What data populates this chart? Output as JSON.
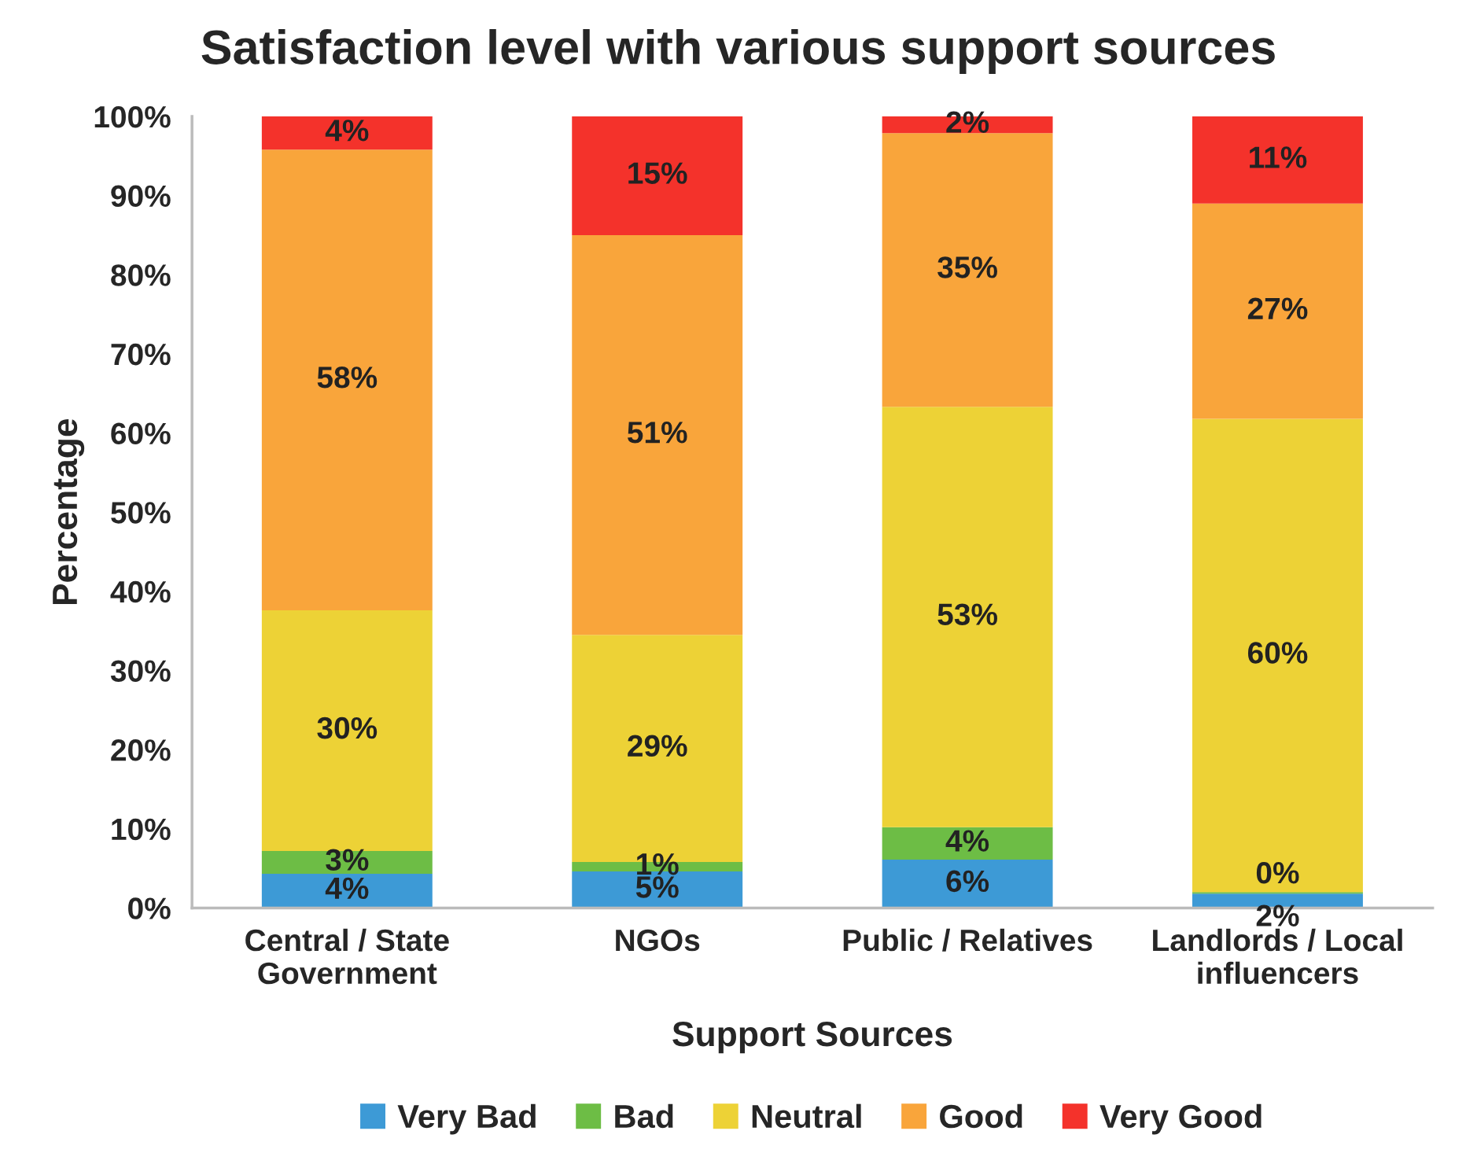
{
  "chart_data": {
    "type": "bar",
    "title": "Satisfaction level with various support sources",
    "xlabel": "Support Sources",
    "ylabel": "Percentage",
    "stacked": true,
    "categories": [
      "Central / State\nGovernment",
      "NGOs",
      "Public / Relatives",
      "Landlords / Local\ninfluencers"
    ],
    "series": [
      {
        "name": "Very Bad",
        "color": "#3d9ad6",
        "values": [
          4.3,
          4.6,
          6.1,
          1.8
        ],
        "value_labels": [
          "4%",
          "5%",
          "6%",
          "2%"
        ]
      },
      {
        "name": "Bad",
        "color": "#6dbd45",
        "values": [
          2.9,
          1.2,
          4.1,
          0.2
        ],
        "value_labels": [
          "3%",
          "1%",
          "4%",
          "0%"
        ]
      },
      {
        "name": "Neutral",
        "color": "#edd236",
        "values": [
          30.4,
          28.7,
          53.1,
          59.8
        ],
        "value_labels": [
          "30%",
          "29%",
          "53%",
          "60%"
        ]
      },
      {
        "name": "Good",
        "color": "#f9a53b",
        "values": [
          58.2,
          50.5,
          34.6,
          27.2
        ],
        "value_labels": [
          "58%",
          "51%",
          "35%",
          "27%"
        ]
      },
      {
        "name": "Very Good",
        "color": "#f4322b",
        "values": [
          4.2,
          15.0,
          2.1,
          11.0
        ],
        "value_labels": [
          "4%",
          "15%",
          "2%",
          "11%"
        ]
      }
    ],
    "ylim": [
      0,
      100
    ],
    "yticks": [
      {
        "value": 0,
        "label": "0%"
      },
      {
        "value": 10,
        "label": "10%"
      },
      {
        "value": 20,
        "label": "20%"
      },
      {
        "value": 30,
        "label": "30%"
      },
      {
        "value": 40,
        "label": "40%"
      },
      {
        "value": 50,
        "label": "50%"
      },
      {
        "value": 60,
        "label": "60%"
      },
      {
        "value": 70,
        "label": "70%"
      },
      {
        "value": 80,
        "label": "80%"
      },
      {
        "value": 90,
        "label": "90%"
      },
      {
        "value": 100,
        "label": "100%"
      }
    ],
    "legend": "bottom",
    "grid": false
  }
}
